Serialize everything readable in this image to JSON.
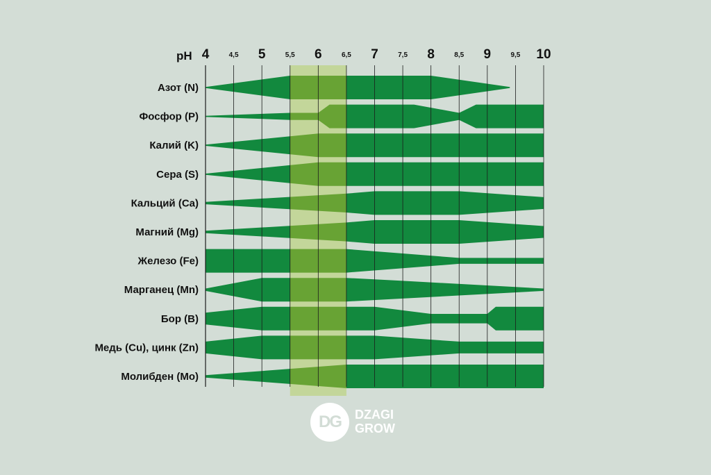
{
  "chart_data": {
    "type": "area",
    "xlabel": "pH",
    "xlim": [
      4,
      10
    ],
    "ticks": [
      {
        "value": 4,
        "label": "4",
        "major": true
      },
      {
        "value": 4.5,
        "label": "4,5",
        "major": false
      },
      {
        "value": 5,
        "label": "5",
        "major": true
      },
      {
        "value": 5.5,
        "label": "5,5",
        "major": false
      },
      {
        "value": 6,
        "label": "6",
        "major": true
      },
      {
        "value": 6.5,
        "label": "6,5",
        "major": false
      },
      {
        "value": 7,
        "label": "7",
        "major": true
      },
      {
        "value": 7.5,
        "label": "7,5",
        "major": false
      },
      {
        "value": 8,
        "label": "8",
        "major": true
      },
      {
        "value": 8.5,
        "label": "8,5",
        "major": false
      },
      {
        "value": 9,
        "label": "9",
        "major": true
      },
      {
        "value": 9.5,
        "label": "9,5",
        "major": false
      },
      {
        "value": 10,
        "label": "10",
        "major": true
      }
    ],
    "optimal_range": [
      5.5,
      6.5
    ],
    "colors": {
      "band": "#12893e",
      "band_in_optimal": "#68a334",
      "optimal": "#c3d69a",
      "background": "#d3ddd6"
    },
    "series": [
      {
        "name": "Азот (N)",
        "availability": [
          [
            4,
            0.05
          ],
          [
            5.5,
            1
          ],
          [
            8,
            1
          ],
          [
            9.4,
            0.05
          ]
        ]
      },
      {
        "name": "Фосфор (P)",
        "availability": [
          [
            4,
            0.05
          ],
          [
            5.5,
            0.3
          ],
          [
            6,
            0.3
          ],
          [
            6.2,
            1
          ],
          [
            7.7,
            1
          ],
          [
            8.5,
            0.3
          ],
          [
            8.8,
            1
          ],
          [
            10,
            1
          ]
        ]
      },
      {
        "name": "Калий (K)",
        "availability": [
          [
            4,
            0.05
          ],
          [
            6,
            1
          ],
          [
            10,
            1
          ]
        ]
      },
      {
        "name": "Сера (S)",
        "availability": [
          [
            4,
            0.05
          ],
          [
            6,
            1
          ],
          [
            10,
            1
          ]
        ]
      },
      {
        "name": "Кальций (Ca)",
        "availability": [
          [
            4,
            0.1
          ],
          [
            6.5,
            0.8
          ],
          [
            7,
            1
          ],
          [
            8.5,
            1
          ],
          [
            10,
            0.5
          ]
        ]
      },
      {
        "name": "Магний (Mg)",
        "availability": [
          [
            4,
            0.1
          ],
          [
            6.5,
            0.8
          ],
          [
            7,
            1
          ],
          [
            8.5,
            1
          ],
          [
            10,
            0.5
          ]
        ]
      },
      {
        "name": "Железо (Fe)",
        "availability": [
          [
            4,
            1
          ],
          [
            6.5,
            1
          ],
          [
            8.5,
            0.25
          ],
          [
            10,
            0.25
          ]
        ]
      },
      {
        "name": "Марганец (Mn)",
        "availability": [
          [
            4,
            0.1
          ],
          [
            5,
            1
          ],
          [
            6.5,
            1
          ],
          [
            7.5,
            0.75
          ],
          [
            10,
            0.1
          ]
        ]
      },
      {
        "name": "Бор (B)",
        "availability": [
          [
            4,
            0.5
          ],
          [
            5,
            1
          ],
          [
            6.5,
            1
          ],
          [
            7,
            1
          ],
          [
            8,
            0.4
          ],
          [
            9,
            0.4
          ],
          [
            9.15,
            1
          ],
          [
            10,
            1
          ]
        ]
      },
      {
        "name": "Медь (Cu), цинк (Zn)",
        "availability": [
          [
            4,
            0.5
          ],
          [
            5,
            1
          ],
          [
            7,
            1
          ],
          [
            8.5,
            0.5
          ],
          [
            10,
            0.5
          ]
        ]
      },
      {
        "name": "Молибден (Mo)",
        "availability": [
          [
            4,
            0.1
          ],
          [
            6.5,
            1
          ],
          [
            10,
            1
          ]
        ]
      }
    ]
  },
  "logo": {
    "mono": "DG",
    "line1": "DZAGI",
    "line2": "GROW"
  }
}
